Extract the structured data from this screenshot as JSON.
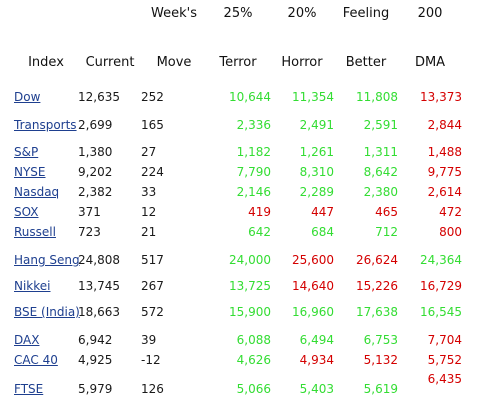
{
  "colors": {
    "green": "#33dd33",
    "red": "#d40000",
    "link": "#1e3f8f",
    "text": "#1a1a1a"
  },
  "header_top": [
    "Week's",
    "25%",
    "20%",
    "Feeling",
    "200"
  ],
  "header_bottom": [
    "Index",
    "Current",
    "Move",
    "Terror",
    "Horror",
    "Better",
    "DMA"
  ],
  "rows": [
    {
      "index": "Dow",
      "current": "12,635",
      "move": "252",
      "terror": "10,644",
      "horror": "11,354",
      "better": "11,808",
      "dma": "13,373",
      "tc": "green",
      "hc": "green",
      "bc": "green",
      "dc": "red"
    },
    {
      "index": "Transports",
      "current": "2,699",
      "move": "165",
      "terror": "2,336",
      "horror": "2,491",
      "better": "2,591",
      "dma": "2,844",
      "tc": "green",
      "hc": "green",
      "bc": "green",
      "dc": "red"
    },
    {
      "index": "S&P",
      "current": "1,380",
      "move": "27",
      "terror": "1,182",
      "horror": "1,261",
      "better": "1,311",
      "dma": "1,488",
      "tc": "green",
      "hc": "green",
      "bc": "green",
      "dc": "red"
    },
    {
      "index": "NYSE",
      "current": "9,202",
      "move": "224",
      "terror": "7,790",
      "horror": "8,310",
      "better": "8,642",
      "dma": "9,775",
      "tc": "green",
      "hc": "green",
      "bc": "green",
      "dc": "red"
    },
    {
      "index": "Nasdaq",
      "current": "2,382",
      "move": "33",
      "terror": "2,146",
      "horror": "2,289",
      "better": "2,380",
      "dma": "2,614",
      "tc": "green",
      "hc": "green",
      "bc": "green",
      "dc": "red"
    },
    {
      "index": "SOX",
      "current": "371",
      "move": "12",
      "terror": "419",
      "horror": "447",
      "better": "465",
      "dma": "472",
      "tc": "red",
      "hc": "red",
      "bc": "red",
      "dc": "red"
    },
    {
      "index": "Russell",
      "current": "723",
      "move": "21",
      "terror": "642",
      "horror": "684",
      "better": "712",
      "dma": "800",
      "tc": "green",
      "hc": "green",
      "bc": "green",
      "dc": "red"
    },
    {
      "index": "Hang Seng",
      "current": "24,808",
      "move": "517",
      "terror": "24,000",
      "horror": "25,600",
      "better": "26,624",
      "dma": "24,364",
      "tc": "green",
      "hc": "red",
      "bc": "red",
      "dc": "green"
    },
    {
      "index": "Nikkei",
      "current": "13,745",
      "move": "267",
      "terror": "13,725",
      "horror": "14,640",
      "better": "15,226",
      "dma": "16,729",
      "tc": "green",
      "hc": "red",
      "bc": "red",
      "dc": "red"
    },
    {
      "index": "BSE (India)",
      "current": "18,663",
      "move": "572",
      "terror": "15,900",
      "horror": "16,960",
      "better": "17,638",
      "dma": "16,545",
      "tc": "green",
      "hc": "green",
      "bc": "green",
      "dc": "green"
    },
    {
      "index": "DAX",
      "current": "6,942",
      "move": "39",
      "terror": "6,088",
      "horror": "6,494",
      "better": "6,753",
      "dma": "7,704",
      "tc": "green",
      "hc": "green",
      "bc": "green",
      "dc": "red"
    },
    {
      "index": "CAC 40",
      "current": "4,925",
      "move": "-12",
      "terror": "4,626",
      "horror": "4,934",
      "better": "5,132",
      "dma": "5,752",
      "tc": "green",
      "hc": "red",
      "bc": "red",
      "dc": "red"
    },
    {
      "index": "FTSE",
      "current": "5,979",
      "move": "126",
      "terror": "5,066",
      "horror": "5,403",
      "better": "5,619",
      "dma": "",
      "tc": "green",
      "hc": "green",
      "bc": "green",
      "dc": "red"
    }
  ],
  "ftse_dma": "6,435"
}
